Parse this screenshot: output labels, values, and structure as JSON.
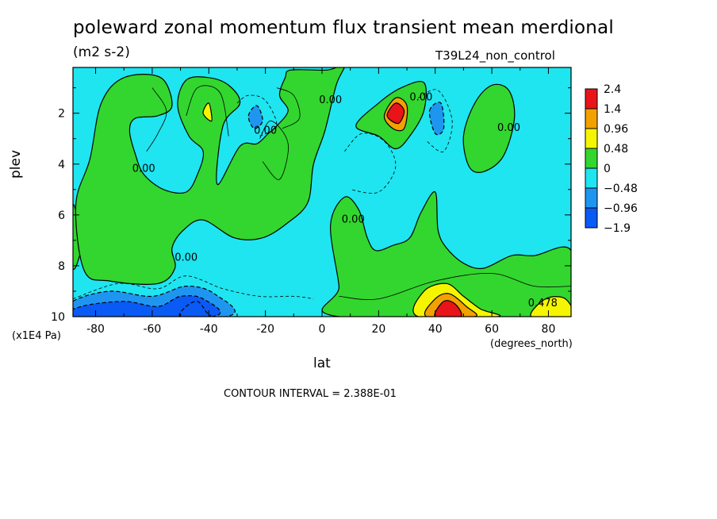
{
  "chart_data": {
    "type": "contour",
    "title": "poleward zonal momentum flux transient mean merdional",
    "units": "(m2 s-2)",
    "run_label": "T39L24_non_control",
    "xlabel": "lat",
    "x_unit_label": "(degrees_north)",
    "ylabel": "plev",
    "y_unit_label": "(x1E4 Pa)",
    "xlim": [
      -88,
      88
    ],
    "ylim": [
      10,
      0.2
    ],
    "x_ticks": [
      -80,
      -60,
      -40,
      -20,
      0,
      20,
      40,
      60,
      80
    ],
    "y_ticks": [
      2,
      4,
      6,
      8,
      10
    ],
    "contour_interval_text": "CONTOUR INTERVAL = 2.388E-01",
    "contour_labels": [
      {
        "text": "0.00",
        "lat": -63,
        "plev": 4.3
      },
      {
        "text": "0.00",
        "lat": -48,
        "plev": 7.8
      },
      {
        "text": "0.00",
        "lat": -20,
        "plev": 2.8
      },
      {
        "text": "0.00",
        "lat": 3,
        "plev": 1.6
      },
      {
        "text": "0.00",
        "lat": 11,
        "plev": 6.3
      },
      {
        "text": "0.00",
        "lat": 35,
        "plev": 1.5
      },
      {
        "text": "0.00",
        "lat": 66,
        "plev": 2.7
      },
      {
        "text": "0.478",
        "lat": 78,
        "plev": 9.6
      }
    ],
    "legend": {
      "labels": [
        "2.4",
        "1.4",
        "0.96",
        "0.48",
        "0",
        "-0.48",
        "-0.96",
        "-1.9"
      ],
      "colors": [
        "#e8141a",
        "#f2a100",
        "#f5f500",
        "#33d62e",
        "#1ee5f0",
        "#1e96f0",
        "#0a5af5"
      ]
    },
    "colors": {
      "neutral_negative": "#1ee5f0",
      "positive_weak": "#33d62e",
      "positive_mid": "#f5f500",
      "positive_strong": "#f2a100",
      "positive_max": "#e8141a",
      "negative_mid": "#1e96f0",
      "negative_strong": "#0a5af5"
    },
    "regions": [
      {
        "level": "pos1",
        "pts": [
          [
            -88,
            8.1
          ],
          [
            -85,
            7.1
          ],
          [
            -88,
            5.6
          ]
        ]
      },
      {
        "level": "pos1",
        "pts": [
          [
            -87,
            5.6
          ],
          [
            -82,
            3.8
          ],
          [
            -78,
            1.6
          ],
          [
            -70,
            0.6
          ],
          [
            -57,
            0.6
          ],
          [
            -53,
            1.7
          ],
          [
            -58,
            2.1
          ],
          [
            -66,
            2.2
          ],
          [
            -68,
            2.7
          ],
          [
            -66,
            3.6
          ],
          [
            -63,
            4.4
          ],
          [
            -56,
            5.0
          ],
          [
            -48,
            5.1
          ],
          [
            -44,
            4.4
          ],
          [
            -42,
            3.5
          ],
          [
            -47,
            2.9
          ],
          [
            -51,
            1.7
          ],
          [
            -48,
            0.7
          ],
          [
            -40,
            0.6
          ],
          [
            -33,
            0.9
          ],
          [
            -29,
            1.6
          ],
          [
            -35,
            2.5
          ],
          [
            -37,
            4.8
          ],
          [
            -29,
            3.3
          ],
          [
            -23,
            3.2
          ],
          [
            -19,
            2.8
          ],
          [
            -16,
            2.5
          ],
          [
            -12,
            1.9
          ],
          [
            -15,
            1.3
          ],
          [
            -13,
            0.6
          ],
          [
            -11,
            0.3
          ],
          [
            2,
            0.3
          ],
          [
            8,
            0.1
          ],
          [
            5,
            0.9
          ],
          [
            1,
            2.7
          ],
          [
            -3,
            4.0
          ],
          [
            -5,
            5.5
          ],
          [
            -12,
            6.3
          ],
          [
            -21,
            6.9
          ],
          [
            -31,
            6.9
          ],
          [
            -42,
            6.2
          ],
          [
            -49,
            6.6
          ],
          [
            -53,
            7.3
          ],
          [
            -52,
            8.1
          ],
          [
            -58,
            8.7
          ],
          [
            -75,
            8.6
          ],
          [
            -84,
            8.2
          ]
        ]
      },
      {
        "level": "pos1",
        "pts": [
          [
            12,
            2.5
          ],
          [
            20,
            1.6
          ],
          [
            28,
            1.0
          ],
          [
            36,
            0.8
          ],
          [
            36,
            1.9
          ],
          [
            31,
            2.9
          ],
          [
            26,
            3.4
          ],
          [
            20,
            2.9
          ]
        ]
      },
      {
        "level": "pos1",
        "pts": [
          [
            50,
            2.9
          ],
          [
            54,
            1.6
          ],
          [
            60,
            0.9
          ],
          [
            66,
            1.1
          ],
          [
            68,
            2.2
          ],
          [
            64,
            3.7
          ],
          [
            57,
            4.3
          ],
          [
            52,
            4.1
          ]
        ]
      },
      {
        "level": "pos1",
        "pts": [
          [
            6,
            10
          ],
          [
            6,
            8.8
          ],
          [
            3,
            6.4
          ],
          [
            8,
            5.3
          ],
          [
            13,
            5.8
          ],
          [
            16,
            6.9
          ],
          [
            19,
            7.4
          ],
          [
            25,
            7.2
          ],
          [
            31,
            6.9
          ],
          [
            35,
            5.9
          ],
          [
            40,
            5.1
          ],
          [
            41,
            6.6
          ],
          [
            44,
            7.3
          ],
          [
            50,
            7.9
          ],
          [
            57,
            8.1
          ],
          [
            67,
            7.6
          ],
          [
            75,
            7.6
          ],
          [
            88,
            7.4
          ],
          [
            88,
            10
          ]
        ]
      },
      {
        "level": "pos2",
        "pts": [
          [
            34,
            10
          ],
          [
            36,
            9.0
          ],
          [
            44,
            8.7
          ],
          [
            50,
            9.2
          ],
          [
            56,
            9.7
          ],
          [
            62,
            10
          ]
        ]
      },
      {
        "level": "pos2",
        "pts": [
          [
            74,
            10
          ],
          [
            79,
            9.3
          ],
          [
            86,
            9.3
          ],
          [
            88,
            10
          ]
        ]
      },
      {
        "level": "pos3",
        "pts": [
          [
            37,
            10
          ],
          [
            40,
            9.3
          ],
          [
            45,
            9.1
          ],
          [
            51,
            9.6
          ],
          [
            54,
            10
          ]
        ]
      },
      {
        "level": "pos3",
        "pts": [
          [
            22,
            2.1
          ],
          [
            26,
            1.4
          ],
          [
            30,
            1.7
          ],
          [
            29,
            2.6
          ],
          [
            25,
            2.6
          ]
        ]
      },
      {
        "level": "pos4",
        "pts": [
          [
            40,
            10
          ],
          [
            43,
            9.4
          ],
          [
            47,
            9.5
          ],
          [
            49,
            10
          ]
        ]
      },
      {
        "level": "pos4",
        "pts": [
          [
            23,
            2.1
          ],
          [
            26,
            1.6
          ],
          [
            29,
            1.9
          ],
          [
            27,
            2.4
          ]
        ]
      },
      {
        "level": "pos2",
        "pts": [
          [
            -42,
            2.0
          ],
          [
            -40,
            1.6
          ],
          [
            -39,
            2.3
          ]
        ]
      },
      {
        "level": "neg1",
        "pts": [
          [
            -26,
            2.1
          ],
          [
            -23,
            1.7
          ],
          [
            -21,
            2.3
          ],
          [
            -24,
            2.6
          ]
        ]
      },
      {
        "level": "neg1",
        "pts": [
          [
            38,
            1.9
          ],
          [
            42,
            1.6
          ],
          [
            43,
            2.6
          ],
          [
            40,
            2.8
          ]
        ]
      },
      {
        "level": "neg1",
        "pts": [
          [
            -88,
            10
          ],
          [
            -88,
            9.4
          ],
          [
            -75,
            9.0
          ],
          [
            -60,
            9.2
          ],
          [
            -48,
            8.8
          ],
          [
            -38,
            9.1
          ],
          [
            -34,
            10
          ]
        ]
      },
      {
        "level": "neg2",
        "pts": [
          [
            -88,
            10
          ],
          [
            -85,
            9.6
          ],
          [
            -70,
            9.4
          ],
          [
            -58,
            9.6
          ],
          [
            -50,
            9.2
          ],
          [
            -42,
            9.3
          ],
          [
            -39,
            10
          ]
        ]
      },
      {
        "level": "neg3",
        "pts": [
          [
            -50,
            10
          ],
          [
            -48,
            9.6
          ],
          [
            -44,
            9.4
          ],
          [
            -41,
            9.8
          ],
          [
            -40,
            10
          ]
        ]
      }
    ],
    "contour_lines": [
      {
        "dashed": false,
        "pts": [
          [
            -60,
            1.0
          ],
          [
            -55,
            1.9
          ],
          [
            -58,
            2.8
          ],
          [
            -62,
            3.5
          ]
        ]
      },
      {
        "dashed": true,
        "pts": [
          [
            -30,
            1.6
          ],
          [
            -26,
            1.3
          ],
          [
            -20,
            1.5
          ],
          [
            -16,
            2.5
          ],
          [
            -22,
            2.9
          ]
        ]
      },
      {
        "dashed": true,
        "pts": [
          [
            8,
            3.5
          ],
          [
            14,
            2.8
          ],
          [
            22,
            3.1
          ],
          [
            26,
            4.1
          ],
          [
            20,
            5.1
          ],
          [
            10,
            5.0
          ]
        ]
      },
      {
        "dashed": true,
        "pts": [
          [
            34,
            1.4
          ],
          [
            41,
            1.1
          ],
          [
            46,
            2.3
          ],
          [
            43,
            3.5
          ],
          [
            37,
            3.1
          ]
        ]
      },
      {
        "dashed": false,
        "pts": [
          [
            -48,
            2.1
          ],
          [
            -44,
            1.0
          ],
          [
            -36,
            1.2
          ],
          [
            -33,
            2.9
          ]
        ]
      },
      {
        "dashed": false,
        "pts": [
          [
            -22,
            3.0
          ],
          [
            -18,
            2.3
          ],
          [
            -12,
            3.2
          ],
          [
            -15,
            4.6
          ],
          [
            -21,
            3.9
          ]
        ]
      },
      {
        "dashed": false,
        "pts": [
          [
            -16,
            1.0
          ],
          [
            -10,
            1.3
          ],
          [
            -8,
            2.2
          ],
          [
            -14,
            2.6
          ]
        ]
      },
      {
        "dashed": false,
        "pts": [
          [
            6,
            9.2
          ],
          [
            20,
            9.3
          ],
          [
            40,
            8.6
          ],
          [
            60,
            8.3
          ],
          [
            75,
            8.8
          ],
          [
            88,
            8.8
          ]
        ]
      },
      {
        "dashed": true,
        "pts": [
          [
            -88,
            9.3
          ],
          [
            -72,
            8.7
          ],
          [
            -58,
            8.9
          ],
          [
            -48,
            8.4
          ],
          [
            -35,
            8.9
          ],
          [
            -22,
            9.2
          ],
          [
            -10,
            9.2
          ],
          [
            -3,
            9.3
          ]
        ]
      }
    ]
  }
}
